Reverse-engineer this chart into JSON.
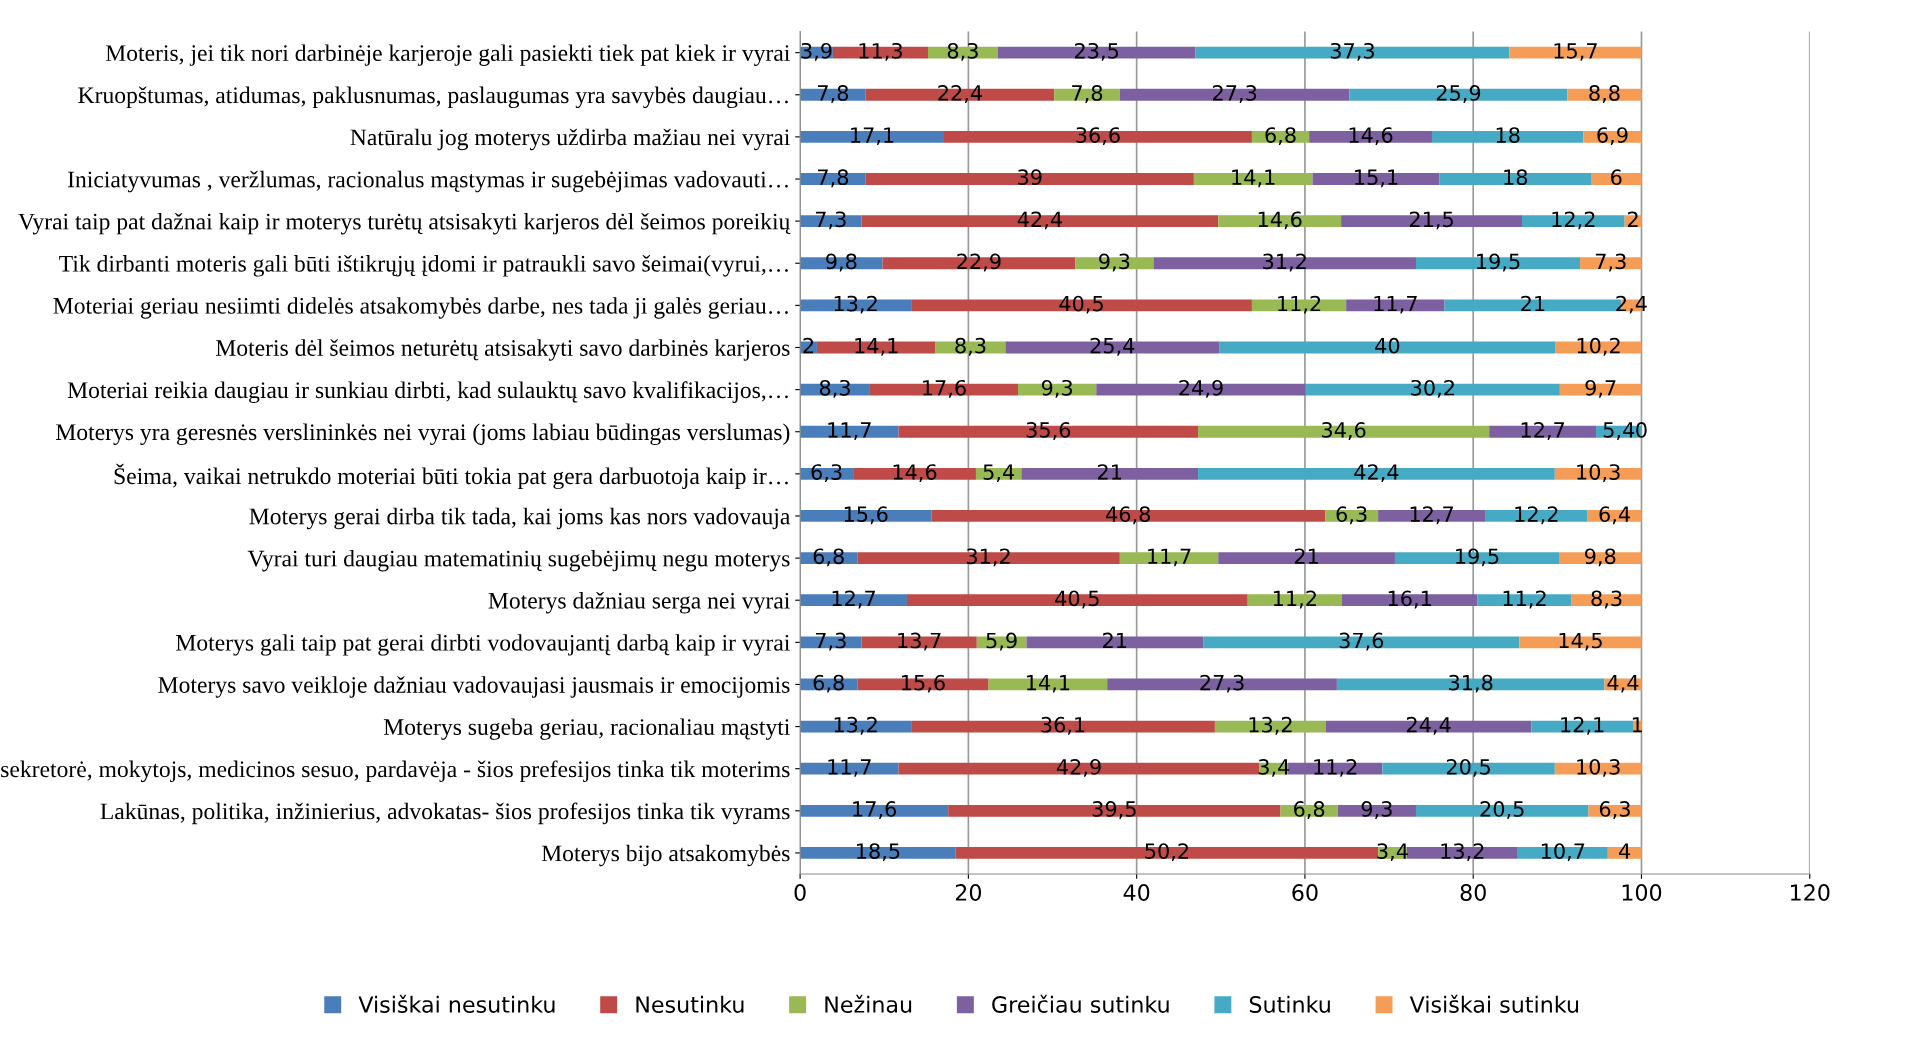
{
  "chart_data": {
    "type": "bar",
    "orientation": "horizontal",
    "stacked": true,
    "categories": [
      "Moteris, jei tik nori darbinėje karjeroje gali pasiekti tiek pat kiek ir vyrai",
      "Kruopštumas, atidumas, paklusnumas, paslaugumas yra savybės daugiau…",
      "Natūralu jog moterys uždirba mažiau nei vyrai",
      "Iniciatyvumas , veržlumas, racionalus mąstymas ir sugebėjimas vadovauti…",
      "Vyrai taip pat dažnai kaip ir moterys turėtų atsisakyti karjeros dėl šeimos poreikių",
      "Tik dirbanti moteris gali būti ištikrųjų įdomi ir patraukli savo šeimai(vyrui,…",
      "Moteriai geriau nesiimti didelės atsakomybės darbe, nes tada ji galės geriau…",
      "Moteris dėl šeimos neturėtų atsisakyti savo darbinės karjeros",
      "Moteriai reikia daugiau ir sunkiau dirbti, kad sulauktų savo kvalifikacijos,…",
      "Moterys yra geresnės verslininkės nei vyrai (joms labiau būdingas verslumas)",
      "Šeima, vaikai netrukdo moteriai būti tokia pat gera darbuotoja kaip ir…",
      "Moterys gerai dirba tik tada, kai joms kas nors vadovauja",
      "Vyrai turi daugiau matematinių sugebėjimų negu moterys",
      "Moterys dažniau serga nei vyrai",
      "Moterys gali taip pat gerai dirbti vodovaujantį darbą kaip ir vyrai",
      "Moterys savo veikloje dažniau vadovaujasi jausmais ir emocijomis",
      "Moterys sugeba geriau, racionaliau mąstyti",
      "sekretorė, mokytojs, medicinos sesuo, pardavėja - šios prefesijos tinka tik moterims",
      "Lakūnas, politika, inžinierius, advokatas- šios profesijos tinka tik vyrams",
      "Moterys bijo atsakomybės"
    ],
    "series": [
      {
        "name": "Visiškai nesutinku",
        "color": "#4a7ebb",
        "values": [
          3.9,
          7.8,
          17.1,
          7.8,
          7.3,
          9.8,
          13.2,
          2,
          8.3,
          11.7,
          6.3,
          15.6,
          6.8,
          12.7,
          7.3,
          6.8,
          13.2,
          11.7,
          17.6,
          18.5
        ],
        "value_labels": [
          "3,9",
          "7,8",
          "17,1",
          "7,8",
          "7,3",
          "9,8",
          "13,2",
          "2",
          "8,3",
          "11,7",
          "6,3",
          "15,6",
          "6,8",
          "12,7",
          "7,3",
          "6,8",
          "13,2",
          "11,7",
          "17,6",
          "18,5"
        ]
      },
      {
        "name": "Nesutinku",
        "color": "#be4b48",
        "values": [
          11.3,
          22.4,
          36.6,
          39,
          42.4,
          22.9,
          40.5,
          14.1,
          17.6,
          35.6,
          14.6,
          46.8,
          31.2,
          40.5,
          13.7,
          15.6,
          36.1,
          42.9,
          39.5,
          50.2
        ],
        "value_labels": [
          "11,3",
          "22,4",
          "36,6",
          "39",
          "42,4",
          "22,9",
          "40,5",
          "14,1",
          "17,6",
          "35,6",
          "14,6",
          "46,8",
          "31,2",
          "40,5",
          "13,7",
          "15,6",
          "36,1",
          "42,9",
          "39,5",
          "50,2"
        ]
      },
      {
        "name": "Nežinau",
        "color": "#98b954",
        "values": [
          8.3,
          7.8,
          6.8,
          14.1,
          14.6,
          9.3,
          11.2,
          8.3,
          9.3,
          34.6,
          5.4,
          6.3,
          11.7,
          11.2,
          5.9,
          14.1,
          13.2,
          3.4,
          6.8,
          3.4
        ],
        "value_labels": [
          "8,3",
          "7,8",
          "6,8",
          "14,1",
          "14,6",
          "9,3",
          "11,2",
          "8,3",
          "9,3",
          "34,6",
          "5,4",
          "6,3",
          "11,7",
          "11,2",
          "5,9",
          "14,1",
          "13,2",
          "3,4",
          "6,8",
          "3,4"
        ]
      },
      {
        "name": "Greičiau sutinku",
        "color": "#7d60a0",
        "values": [
          23.5,
          27.3,
          14.6,
          15.1,
          21.5,
          31.2,
          11.7,
          25.4,
          24.9,
          12.7,
          21,
          12.7,
          21,
          16.1,
          21,
          27.3,
          24.4,
          11.2,
          9.3,
          13.2
        ],
        "value_labels": [
          "23,5",
          "27,3",
          "14,6",
          "15,1",
          "21,5",
          "31,2",
          "11,7",
          "25,4",
          "24,9",
          "12,7",
          "21",
          "12,7",
          "21",
          "16,1",
          "21",
          "27,3",
          "24,4",
          "11,2",
          "9,3",
          "13,2"
        ]
      },
      {
        "name": "Sutinku",
        "color": "#46aac5",
        "values": [
          37.3,
          25.9,
          18,
          18,
          12.2,
          19.5,
          21,
          40,
          30.2,
          5.4,
          42.4,
          12.2,
          19.5,
          11.2,
          37.6,
          31.8,
          12.1,
          20.5,
          20.5,
          10.7
        ],
        "value_labels": [
          "37,3",
          "25,9",
          "18",
          "18",
          "12,2",
          "19,5",
          "21",
          "40",
          "30,2",
          "5,4",
          "42,4",
          "12,2",
          "19,5",
          "11,2",
          "37,6",
          "31,8",
          "12,1",
          "20,5",
          "20,5",
          "10,7"
        ]
      },
      {
        "name": "Visiškai sutinku",
        "color": "#f59d56",
        "values": [
          15.7,
          8.8,
          6.9,
          6,
          2,
          7.3,
          2.4,
          10.2,
          9.7,
          0,
          10.3,
          6.4,
          9.8,
          8.3,
          14.5,
          4.4,
          1,
          10.3,
          6.3,
          4
        ],
        "value_labels": [
          "15,7",
          "8,8",
          "6,9",
          "6",
          "2",
          "7,3",
          "2,4",
          "10,2",
          "9,7",
          "0",
          "10,3",
          "6,4",
          "9,8",
          "8,3",
          "14,5",
          "4,4",
          "1",
          "10,3",
          "6,3",
          "4"
        ]
      }
    ],
    "xlim": [
      0,
      120
    ],
    "xticks": [
      0,
      20,
      40,
      60,
      80,
      100,
      120
    ],
    "grid": "x",
    "legend": "bottom"
  }
}
